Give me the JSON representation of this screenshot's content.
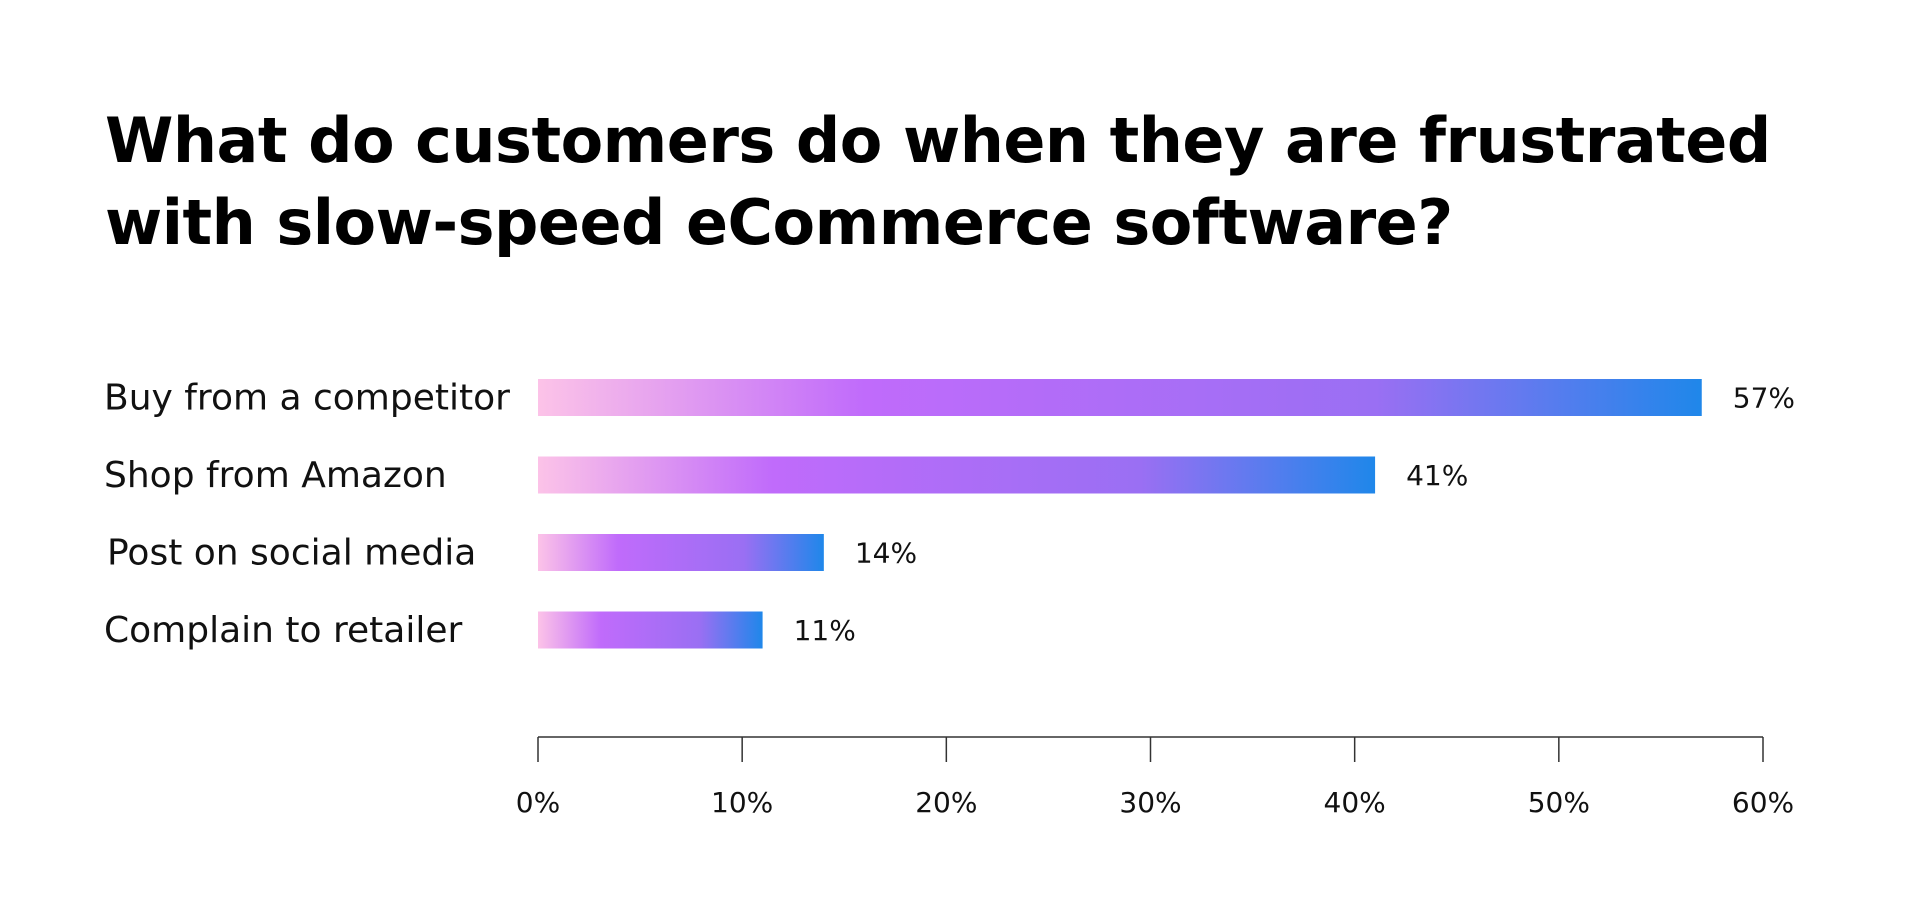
{
  "title": "What do customers do when they are frustrated with slow-speed eCommerce software?",
  "colors": {
    "gradient_start": "#fcc3e8",
    "gradient_mid": "#c06bfb",
    "gradient_end": "#1f87ea",
    "axis": "#333333",
    "text": "#111111"
  },
  "chart_data": {
    "type": "bar",
    "orientation": "horizontal",
    "title": "What do customers do when they are frustrated with slow-speed eCommerce software?",
    "categories": [
      "Buy from a competitor",
      "Shop from Amazon",
      "Post on social media",
      "Complain to retailer"
    ],
    "values": [
      57,
      41,
      14,
      11
    ],
    "value_labels": [
      "57%",
      "41%",
      "14%",
      "11%"
    ],
    "xlim": [
      0,
      60
    ],
    "xticks": [
      0,
      10,
      20,
      30,
      40,
      50,
      60
    ],
    "xtick_labels": [
      "0%",
      "10%",
      "20%",
      "30%",
      "40%",
      "50%",
      "60%"
    ],
    "xlabel": "",
    "ylabel": "",
    "grid": false,
    "legend": "none"
  }
}
